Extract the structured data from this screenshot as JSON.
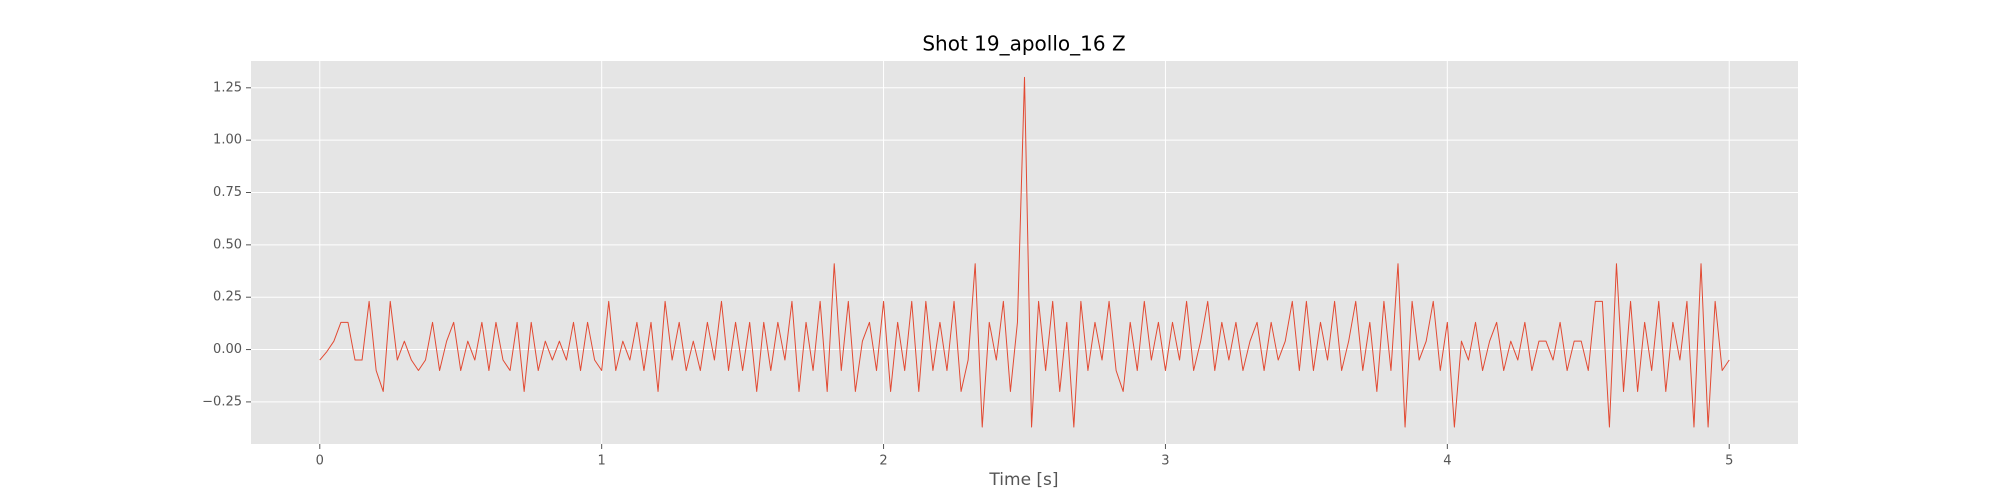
{
  "chart_data": {
    "type": "line",
    "title": "Shot 19_apollo_16 Z",
    "xlabel": "Time [s]",
    "x": [
      0,
      0.025,
      0.05,
      0.075,
      0.1,
      0.125,
      0.15,
      0.175,
      0.2,
      0.225,
      0.25,
      0.275,
      0.3,
      0.325,
      0.35,
      0.375,
      0.4,
      0.425,
      0.45,
      0.475,
      0.5,
      0.525,
      0.55,
      0.575,
      0.6,
      0.625,
      0.65,
      0.675,
      0.7,
      0.725,
      0.75,
      0.775,
      0.8,
      0.825,
      0.85,
      0.875,
      0.9,
      0.925,
      0.95,
      0.975,
      1,
      1.025,
      1.05,
      1.075,
      1.1,
      1.125,
      1.15,
      1.175,
      1.2,
      1.225,
      1.25,
      1.275,
      1.3,
      1.325,
      1.35,
      1.375,
      1.4,
      1.425,
      1.45,
      1.475,
      1.5,
      1.525,
      1.55,
      1.575,
      1.6,
      1.625,
      1.65,
      1.675,
      1.7,
      1.725,
      1.75,
      1.775,
      1.8,
      1.825,
      1.85,
      1.875,
      1.9,
      1.925,
      1.95,
      1.975,
      2,
      2.025,
      2.05,
      2.075,
      2.1,
      2.125,
      2.15,
      2.175,
      2.2,
      2.225,
      2.25,
      2.275,
      2.3,
      2.325,
      2.35,
      2.375,
      2.4,
      2.425,
      2.45,
      2.475,
      2.5,
      2.525,
      2.55,
      2.575,
      2.6,
      2.625,
      2.65,
      2.675,
      2.7,
      2.725,
      2.75,
      2.775,
      2.8,
      2.825,
      2.85,
      2.875,
      2.9,
      2.925,
      2.95,
      2.975,
      3,
      3.025,
      3.05,
      3.075,
      3.1,
      3.125,
      3.15,
      3.175,
      3.2,
      3.225,
      3.25,
      3.275,
      3.3,
      3.325,
      3.35,
      3.375,
      3.4,
      3.425,
      3.45,
      3.475,
      3.5,
      3.525,
      3.55,
      3.575,
      3.6,
      3.625,
      3.65,
      3.675,
      3.7,
      3.725,
      3.75,
      3.775,
      3.8,
      3.825,
      3.85,
      3.875,
      3.9,
      3.925,
      3.95,
      3.975,
      4,
      4.025,
      4.05,
      4.075,
      4.1,
      4.125,
      4.15,
      4.175,
      4.2,
      4.225,
      4.25,
      4.275,
      4.3,
      4.325,
      4.35,
      4.375,
      4.4,
      4.425,
      4.45,
      4.475,
      4.5,
      4.525,
      4.55,
      4.575,
      4.6,
      4.625,
      4.65,
      4.675,
      4.7,
      4.725,
      4.75,
      4.775,
      4.8,
      4.825,
      4.85,
      4.875,
      4.9,
      4.925,
      4.95,
      4.975,
      5
    ],
    "series": [
      {
        "color": "#E24A33",
        "values": [
          -0.05,
          -0.01,
          0.04,
          0.13,
          0.13,
          -0.05,
          -0.05,
          0.23,
          -0.1,
          -0.2,
          0.23,
          -0.05,
          0.04,
          -0.05,
          -0.1,
          -0.05,
          0.13,
          -0.1,
          0.04,
          0.13,
          -0.1,
          0.04,
          -0.05,
          0.13,
          -0.1,
          0.13,
          -0.05,
          -0.1,
          0.13,
          -0.2,
          0.13,
          -0.1,
          0.04,
          -0.05,
          0.04,
          -0.05,
          0.13,
          -0.1,
          0.13,
          -0.05,
          -0.1,
          0.23,
          -0.1,
          0.04,
          -0.05,
          0.13,
          -0.1,
          0.13,
          -0.2,
          0.23,
          -0.05,
          0.13,
          -0.1,
          0.04,
          -0.1,
          0.13,
          -0.05,
          0.23,
          -0.1,
          0.13,
          -0.1,
          0.13,
          -0.2,
          0.13,
          -0.1,
          0.13,
          -0.05,
          0.23,
          -0.2,
          0.13,
          -0.1,
          0.23,
          -0.2,
          0.41,
          -0.1,
          0.23,
          -0.2,
          0.04,
          0.13,
          -0.1,
          0.23,
          -0.2,
          0.13,
          -0.1,
          0.23,
          -0.2,
          0.23,
          -0.1,
          0.13,
          -0.1,
          0.23,
          -0.2,
          -0.05,
          0.41,
          -0.37,
          0.13,
          -0.05,
          0.23,
          -0.2,
          0.13,
          1.3,
          -0.37,
          0.23,
          -0.1,
          0.23,
          -0.2,
          0.13,
          -0.37,
          0.23,
          -0.1,
          0.13,
          -0.05,
          0.23,
          -0.1,
          -0.2,
          0.13,
          -0.1,
          0.23,
          -0.05,
          0.13,
          -0.1,
          0.13,
          -0.05,
          0.23,
          -0.1,
          0.04,
          0.23,
          -0.1,
          0.13,
          -0.05,
          0.13,
          -0.1,
          0.04,
          0.13,
          -0.1,
          0.13,
          -0.05,
          0.04,
          0.23,
          -0.1,
          0.23,
          -0.1,
          0.13,
          -0.05,
          0.23,
          -0.1,
          0.04,
          0.23,
          -0.1,
          0.13,
          -0.2,
          0.23,
          -0.1,
          0.41,
          -0.37,
          0.23,
          -0.05,
          0.04,
          0.23,
          -0.1,
          0.13,
          -0.37,
          0.04,
          -0.05,
          0.13,
          -0.1,
          0.04,
          0.13,
          -0.1,
          0.04,
          -0.05,
          0.13,
          -0.1,
          0.04,
          0.04,
          -0.05,
          0.13,
          -0.1,
          0.04,
          0.04,
          -0.1,
          0.23,
          0.23,
          -0.37,
          0.41,
          -0.2,
          0.23,
          -0.2,
          0.13,
          -0.1,
          0.23,
          -0.2,
          0.13,
          -0.05,
          0.23,
          -0.37,
          0.41,
          -0.37,
          0.23,
          -0.1,
          -0.05
        ]
      }
    ],
    "xlim": [
      -0.244,
      5.244
    ],
    "xticks": [
      0,
      1,
      2,
      3,
      4,
      5
    ],
    "ylim": [
      -0.451,
      1.378
    ],
    "yticks": [
      {
        "value": -0.25,
        "label": "−0.25"
      },
      {
        "value": 0,
        "label": "0.00"
      },
      0.25,
      {
        "value": 0.5,
        "label": "0.50"
      },
      0.75,
      {
        "value": 1,
        "label": "1.00"
      },
      1.25
    ],
    "grid": true
  }
}
